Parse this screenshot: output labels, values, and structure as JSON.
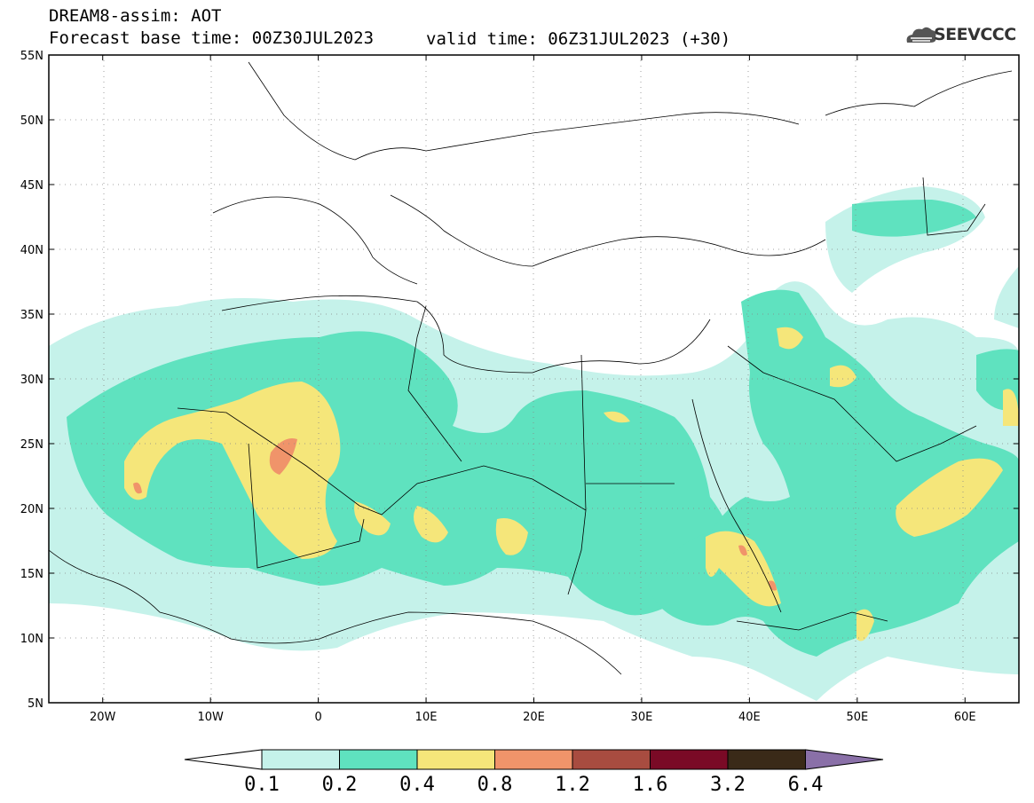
{
  "header": {
    "title": "DREAM8-assim: AOT",
    "base_time": "Forecast base time: 00Z30JUL2023",
    "valid_time": "valid time: 06Z31JUL2023 (+30)",
    "logo_text": "SEEVCCC",
    "logo_icon": "cloud-icon"
  },
  "map": {
    "lon_range": [
      -25,
      65
    ],
    "lat_range": [
      5,
      55
    ],
    "lon_ticks": [
      {
        "value": -20,
        "label": "20W"
      },
      {
        "value": -10,
        "label": "10W"
      },
      {
        "value": 0,
        "label": "0"
      },
      {
        "value": 10,
        "label": "10E"
      },
      {
        "value": 20,
        "label": "20E"
      },
      {
        "value": 30,
        "label": "30E"
      },
      {
        "value": 40,
        "label": "40E"
      },
      {
        "value": 50,
        "label": "50E"
      },
      {
        "value": 60,
        "label": "60E"
      }
    ],
    "lat_ticks": [
      {
        "value": 55,
        "label": "55N"
      },
      {
        "value": 50,
        "label": "50N"
      },
      {
        "value": 45,
        "label": "45N"
      },
      {
        "value": 40,
        "label": "40N"
      },
      {
        "value": 35,
        "label": "35N"
      },
      {
        "value": 30,
        "label": "30N"
      },
      {
        "value": 25,
        "label": "25N"
      },
      {
        "value": 20,
        "label": "20N"
      },
      {
        "value": 15,
        "label": "15N"
      },
      {
        "value": 10,
        "label": "10N"
      },
      {
        "value": 5,
        "label": "5N"
      }
    ],
    "grid": "dotted"
  },
  "colorbar": {
    "levels": [
      "0.1",
      "0.2",
      "0.4",
      "0.8",
      "1.2",
      "1.6",
      "3.2",
      "6.4"
    ],
    "colors": [
      "#c5f2ea",
      "#5fe2bf",
      "#f5e67a",
      "#f0946a",
      "#a84c40",
      "#7a0a26",
      "#3a2a18",
      "#8a70a8"
    ],
    "under_color": "#ffffff"
  }
}
